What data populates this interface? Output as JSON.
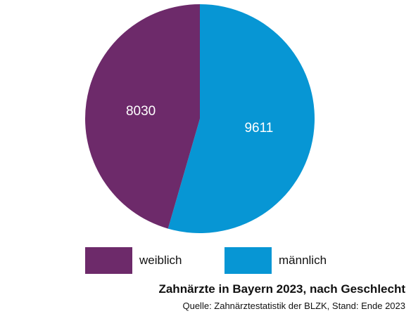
{
  "chart_data": {
    "type": "pie",
    "title": "Zahnärzte in Bayern 2023, nach Geschlecht",
    "source": "Quelle: Zahnärztestatistik der BLZK, Stand: Ende 2023",
    "legend_position": "bottom",
    "slices": [
      {
        "label": "männlich",
        "value": 9611,
        "value_label": "9611",
        "color": "#0796d4"
      },
      {
        "label": "weiblich",
        "value": 8030,
        "value_label": "8030",
        "color": "#6d2a6a"
      }
    ]
  }
}
